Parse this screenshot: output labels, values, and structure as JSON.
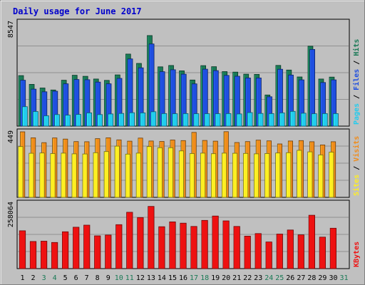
{
  "colors": {
    "background": "#c0c0c0",
    "plot_background": "#c0c0c0",
    "title": "#0000cc",
    "hits": "#1a7a56",
    "files": "#1f4fe0",
    "pages": "#22ccee",
    "visits": "#f08c1c",
    "sites": "#ffee22",
    "kbytes": "#ee1111",
    "weekend_label": "#1a7a56",
    "weekday_label": "#000000",
    "gridline": "#909090"
  },
  "chart_data": {
    "type": "bar",
    "title": "Daily usage for June 2017",
    "categories": [
      "1",
      "2",
      "3",
      "4",
      "5",
      "6",
      "7",
      "8",
      "9",
      "10",
      "11",
      "12",
      "13",
      "14",
      "15",
      "16",
      "17",
      "18",
      "19",
      "20",
      "21",
      "22",
      "23",
      "24",
      "25",
      "26",
      "27",
      "28",
      "29",
      "30",
      "31"
    ],
    "weekend_days": [
      "3",
      "4",
      "10",
      "11",
      "17",
      "18",
      "24",
      "25",
      "31"
    ],
    "panels": [
      {
        "name": "hits-files-pages",
        "max_label": "8547",
        "ylim": [
          0,
          8547
        ],
        "legend": [
          "Pages",
          "Files",
          "Hits"
        ],
        "series": [
          {
            "name": "Hits",
            "values": [
              4150,
              3430,
              3130,
              2970,
              3770,
              4180,
              4090,
              3870,
              3760,
              4210,
              5920,
              5150,
              7440,
              4870,
              4980,
              4540,
              3790,
              4970,
              4880,
              4480,
              4440,
              4270,
              4250,
              2560,
              4990,
              4610,
              4040,
              6570,
              3870,
              4030,
              0
            ]
          },
          {
            "name": "Files",
            "values": [
              3770,
              3040,
              2820,
              2870,
              3480,
              3830,
              3810,
              3620,
              3480,
              3920,
              5520,
              4790,
              6750,
              4470,
              4630,
              4270,
              3470,
              4680,
              4560,
              4170,
              4100,
              3960,
              3960,
              2410,
              4670,
              4200,
              3800,
              6300,
              3580,
              3800,
              0
            ]
          },
          {
            "name": "Pages",
            "values": [
              1600,
              1200,
              850,
              950,
              900,
              960,
              1090,
              950,
              1000,
              1040,
              1100,
              1090,
              1180,
              1030,
              1020,
              1030,
              1020,
              1020,
              1020,
              1030,
              1000,
              1110,
              1040,
              1030,
              1090,
              1210,
              1060,
              1020,
              1030,
              1030,
              0
            ]
          }
        ]
      },
      {
        "name": "visits-sites",
        "max_label": "449",
        "ylim": [
          0,
          449
        ],
        "legend": [
          "Sites",
          "Visits"
        ],
        "series": [
          {
            "name": "Visits",
            "values": [
              449,
              408,
              375,
              407,
              399,
              382,
              381,
              402,
              408,
              394,
              385,
              406,
              386,
              383,
              393,
              389,
              445,
              390,
              385,
              450,
              376,
              382,
              392,
              387,
              366,
              386,
              389,
              381,
              359,
              381,
              0
            ]
          },
          {
            "name": "Sites",
            "values": [
              348,
              302,
              304,
              300,
              303,
              298,
              297,
              306,
              314,
              351,
              296,
              303,
              348,
              340,
              340,
              318,
              300,
              303,
              299,
              303,
              302,
              301,
              298,
              300,
              304,
              306,
              322,
              312,
              291,
              310,
              0
            ]
          }
        ]
      },
      {
        "name": "kbytes",
        "max_label": "258064",
        "ylim": [
          0,
          258064
        ],
        "legend": [
          "KBytes"
        ],
        "series": [
          {
            "name": "KBytes",
            "values": [
              149000,
              107000,
              108000,
              103000,
              145000,
              163000,
              171000,
              129000,
              132000,
              173000,
              222000,
              201000,
              245000,
              165000,
              184000,
              179000,
              166000,
              190000,
              207000,
              188000,
              166000,
              128000,
              138000,
              105000,
              136000,
              152000,
              133000,
              210000,
              124000,
              159000,
              0
            ]
          }
        ]
      }
    ]
  }
}
